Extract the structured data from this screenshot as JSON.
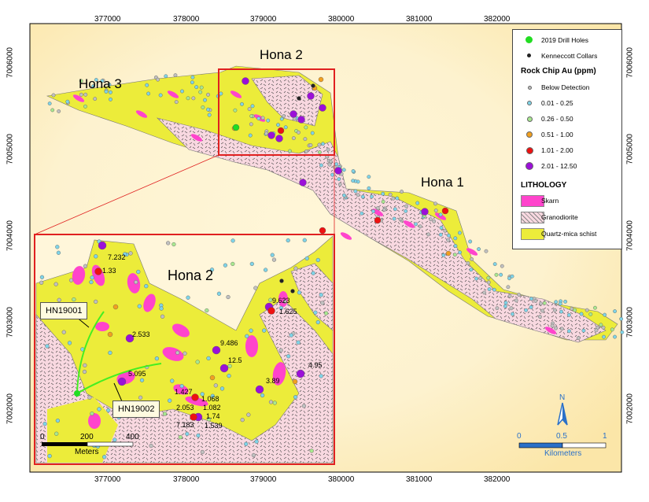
{
  "map": {
    "x_ticks": [
      "377000",
      "378000",
      "379000",
      "380000",
      "381000",
      "382000"
    ],
    "y_ticks": [
      "7006000",
      "7005000",
      "7004000",
      "7003000",
      "7002000"
    ],
    "area_labels": [
      "Hona 3",
      "Hona 2",
      "Hona 1"
    ],
    "inset": {
      "title": "Hona 2",
      "drill_holes": [
        "HN19001",
        "HN19002"
      ],
      "sample_values": [
        "7.232",
        "1.33",
        "2.533",
        "5.095",
        "9.486",
        "12.5",
        "9.623",
        "1.625",
        "4.95",
        "3.89",
        "1.427",
        "1.068",
        "1.082",
        "2.053",
        "1.74",
        "7.183",
        "1.539"
      ],
      "scale": {
        "labels": [
          "0",
          "200",
          "400"
        ],
        "unit": "Meters"
      }
    },
    "scale": {
      "labels": [
        "0",
        "0.5",
        "1"
      ],
      "unit": "Kilometers"
    },
    "north_label": "N"
  },
  "legend": {
    "items": [
      {
        "label": "2019 Drill Holes",
        "color": "#22dd22"
      },
      {
        "label": "Kenneccott Collars",
        "color": "#222222"
      }
    ],
    "rock_chip_title": "Rock Chip Au (ppm)",
    "rock_chip": [
      {
        "label": "Below Detection",
        "color": "#c0c0c0"
      },
      {
        "label": "0.01 - 0.25",
        "color": "#7fd4e8"
      },
      {
        "label": "0.26 - 0.50",
        "color": "#a8e890"
      },
      {
        "label": "0.51 - 1.00",
        "color": "#f2a020"
      },
      {
        "label": "1.01 - 2.00",
        "color": "#ee1111"
      },
      {
        "label": "2.01 - 12.50",
        "color": "#9b10d8"
      }
    ],
    "lithology_title": "LITHOLOGY",
    "lithology": [
      {
        "label": "Skarn",
        "color": "#ff44cc"
      },
      {
        "label": "Granodiorite",
        "color": "#f8d8e0"
      },
      {
        "label": "Quartz-mica schist",
        "color": "#ecec3a"
      }
    ]
  }
}
